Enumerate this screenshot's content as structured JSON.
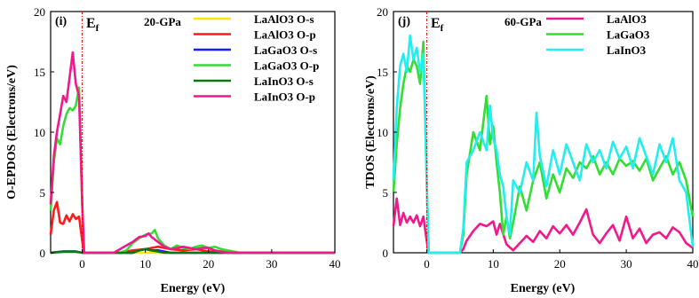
{
  "chart_data": [
    {
      "type": "line",
      "panel_label": "(i)",
      "pressure": "20-GPa",
      "fermi_label": "E",
      "fermi_sub": "f",
      "fermi_x": 0,
      "xlabel": "Energy (eV)",
      "ylabel": "O-EPDOS (Electrons/eV)",
      "xlim": [
        -5,
        40
      ],
      "ylim": [
        0,
        20
      ],
      "xticks": [
        "0",
        "10",
        "20",
        "30",
        "40"
      ],
      "yticks": [
        "0",
        "5",
        "10",
        "15",
        "20"
      ],
      "legend_position": "top-right",
      "series": [
        {
          "name": "LaAlO3 O-s",
          "color": "#ffe600",
          "x": [
            -5,
            -3,
            -1,
            0,
            40
          ],
          "y": [
            0,
            0.05,
            0.05,
            0,
            0
          ]
        },
        {
          "name": "LaAlO3 O-p",
          "color": "#ff1a1a",
          "x": [
            -5,
            -4.5,
            -4,
            -3.5,
            -3,
            -2.5,
            -2,
            -1.5,
            -1,
            -0.5,
            0,
            0.3,
            6,
            8,
            10,
            12,
            14,
            16,
            18,
            20,
            22,
            24,
            26,
            40
          ],
          "y": [
            1.5,
            3.5,
            4.2,
            2.5,
            2.4,
            3.1,
            2.6,
            3.2,
            2.8,
            3.0,
            1.0,
            0,
            0,
            0.2,
            0.3,
            0.5,
            0.3,
            0.2,
            0.3,
            0.1,
            0.1,
            0,
            0,
            0
          ]
        },
        {
          "name": "LaGaO3 O-s",
          "color": "#1a1aff",
          "x": [
            -5,
            -3,
            -1,
            0,
            8,
            9,
            10,
            11,
            12,
            13,
            14,
            40
          ],
          "y": [
            0,
            0.1,
            0.1,
            0,
            0,
            0.2,
            0.3,
            0.2,
            0.2,
            0.1,
            0,
            0
          ]
        },
        {
          "name": "LaGaO3 O-p",
          "color": "#33dd33",
          "x": [
            -5,
            -4.5,
            -4,
            -3.5,
            -3,
            -2.5,
            -2,
            -1.5,
            -1,
            -0.5,
            0,
            0.3,
            6,
            7,
            8,
            9,
            10,
            11,
            11.5,
            12,
            13,
            14,
            15,
            16,
            17,
            18,
            19,
            20,
            21,
            22,
            23,
            24,
            25,
            40
          ],
          "y": [
            3.5,
            7.5,
            9.5,
            9.0,
            10.5,
            11.5,
            12.0,
            11.8,
            12.2,
            13.7,
            4.0,
            0,
            0,
            0.2,
            0.8,
            1.2,
            1.5,
            1.6,
            1.9,
            1.2,
            0.6,
            0.3,
            0.6,
            0.4,
            0.3,
            0.5,
            0.6,
            0.4,
            0.5,
            0.3,
            0.2,
            0.1,
            0,
            0
          ]
        },
        {
          "name": "LaInO3 O-s",
          "color": "#0b7a0b",
          "x": [
            -5,
            -3,
            -1,
            0,
            8,
            9,
            10,
            11,
            12,
            13,
            40
          ],
          "y": [
            0,
            0.1,
            0.1,
            0,
            0,
            0.2,
            0.3,
            0.2,
            0.1,
            0,
            0
          ]
        },
        {
          "name": "LaInO3 O-p",
          "color": "#f0198c",
          "x": [
            -5,
            -4.5,
            -4,
            -3.5,
            -3,
            -2.5,
            -2,
            -1.5,
            -1,
            -0.5,
            0,
            0.3,
            5,
            6,
            7,
            8,
            9,
            10,
            10.5,
            11,
            12,
            13,
            14,
            15,
            16,
            17,
            18,
            19,
            20,
            21,
            22,
            23,
            40
          ],
          "y": [
            4.0,
            8.0,
            10.0,
            11.5,
            13.0,
            12.5,
            14.5,
            16.6,
            14.0,
            13.0,
            4.0,
            0,
            0,
            0.3,
            0.6,
            0.9,
            1.3,
            1.4,
            1.6,
            1.3,
            0.9,
            0.5,
            0.3,
            0.4,
            0.5,
            0.4,
            0.3,
            0.4,
            0.4,
            0.2,
            0.1,
            0,
            0
          ]
        }
      ]
    },
    {
      "type": "line",
      "panel_label": "(j)",
      "pressure": "60-GPa",
      "fermi_label": "E",
      "fermi_sub": "f",
      "fermi_x": 0,
      "xlabel": "Energy (eV)",
      "ylabel": "TDOS (Electrons/eV)",
      "xlim": [
        -5,
        40
      ],
      "ylim": [
        0,
        20
      ],
      "xticks": [
        "0",
        "10",
        "20",
        "30",
        "40"
      ],
      "yticks": [
        "0",
        "5",
        "10",
        "15",
        "20"
      ],
      "legend_position": "top-right",
      "series": [
        {
          "name": "LaAlO3",
          "color": "#f0198c",
          "x": [
            -5,
            -4.5,
            -4,
            -3.5,
            -3,
            -2.5,
            -2,
            -1.5,
            -1,
            -0.5,
            0,
            0.3,
            5,
            5.5,
            6,
            7,
            8,
            9,
            10,
            10.5,
            11,
            12,
            13,
            14,
            15,
            16,
            17,
            18,
            19,
            20,
            21,
            22,
            23,
            24,
            25,
            26,
            27,
            28,
            29,
            30,
            31,
            32,
            33,
            34,
            35,
            36,
            37,
            38,
            39,
            40
          ],
          "y": [
            2.2,
            4.5,
            2.3,
            3.3,
            2.5,
            3.0,
            2.5,
            3.1,
            2.2,
            3.0,
            1.0,
            0,
            0,
            0.3,
            1.0,
            1.8,
            2.4,
            2.2,
            2.6,
            1.5,
            2.4,
            0.7,
            0.2,
            0.8,
            1.4,
            0.9,
            1.8,
            1.2,
            2.2,
            1.6,
            2.3,
            1.5,
            2.5,
            3.6,
            1.5,
            0.8,
            1.6,
            2.3,
            1.0,
            3.0,
            1.2,
            2.0,
            0.8,
            1.5,
            1.7,
            1.2,
            2.1,
            1.7,
            0.8,
            0.4
          ]
        },
        {
          "name": "LaGaO3",
          "color": "#33dd33",
          "x": [
            -5,
            -4.5,
            -4,
            -3.5,
            -3,
            -2.5,
            -2,
            -1.5,
            -1,
            -0.5,
            0,
            0.3,
            5,
            5.5,
            6,
            7,
            8,
            8.5,
            9,
            9.5,
            10,
            10.5,
            11,
            11.5,
            12,
            12.5,
            13,
            14,
            15,
            16,
            17,
            18,
            19,
            20,
            21,
            22,
            23,
            24,
            25,
            26,
            27,
            28,
            29,
            30,
            31,
            32,
            33,
            34,
            35,
            36,
            37,
            38,
            39,
            40
          ],
          "y": [
            5.0,
            9.0,
            12.0,
            14.0,
            15.5,
            15.0,
            16.0,
            15.5,
            14.0,
            17.5,
            6.0,
            0,
            0,
            1.5,
            6.5,
            10.0,
            8.5,
            10.8,
            13.0,
            9.0,
            10.5,
            7.5,
            5.0,
            1.5,
            3.0,
            1.2,
            2.5,
            5.5,
            3.5,
            6.0,
            7.5,
            4.5,
            6.5,
            5.0,
            7.0,
            6.2,
            7.5,
            7.0,
            8.0,
            6.5,
            7.5,
            6.5,
            7.8,
            7.2,
            7.6,
            6.8,
            7.8,
            6.0,
            7.0,
            8.0,
            6.5,
            7.5,
            6.0,
            3.0
          ]
        },
        {
          "name": "LaInO3",
          "color": "#22eeee",
          "x": [
            -5,
            -4.5,
            -4,
            -3.5,
            -3,
            -2.5,
            -2,
            -1.5,
            -1,
            -0.5,
            0,
            0.3,
            5,
            5.5,
            6,
            7,
            8,
            9,
            9.5,
            10,
            10.5,
            11,
            11.5,
            12,
            12.5,
            13,
            14,
            15,
            16,
            16.5,
            17,
            18,
            19,
            20,
            21,
            22,
            23,
            24,
            25,
            26,
            27,
            28,
            29,
            30,
            31,
            32,
            33,
            34,
            35,
            36,
            37,
            38,
            39,
            40
          ],
          "y": [
            6.0,
            12.0,
            15.5,
            16.5,
            15.0,
            18.0,
            16.0,
            17.0,
            15.0,
            16.5,
            6.0,
            0,
            0,
            2.0,
            7.5,
            8.5,
            10.0,
            8.5,
            12.2,
            9.5,
            8.5,
            6.5,
            5.5,
            3.0,
            1.5,
            6.0,
            5.0,
            7.5,
            6.0,
            11.6,
            8.0,
            5.5,
            8.5,
            6.5,
            9.0,
            7.5,
            6.0,
            9.0,
            7.5,
            8.5,
            7.0,
            9.2,
            7.8,
            8.8,
            7.0,
            9.5,
            8.0,
            6.5,
            9.0,
            7.5,
            9.5,
            6.0,
            5.0,
            0.5
          ]
        }
      ]
    }
  ]
}
